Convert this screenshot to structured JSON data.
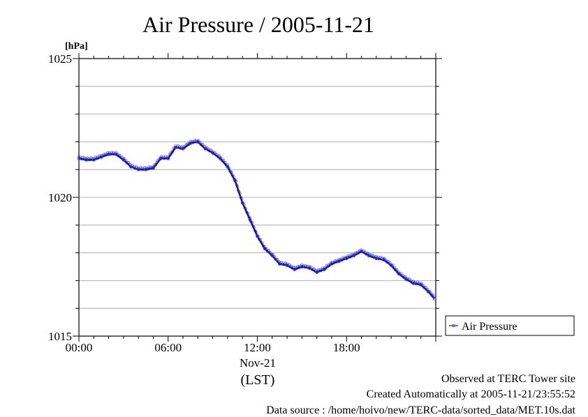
{
  "chart_data": {
    "type": "line",
    "title": "Air Pressure / 2005-11-21",
    "ylabel": "[hPa]",
    "xlabel": "(LST)",
    "x_date_label": "Nov-21",
    "ylim": [
      1015,
      1025
    ],
    "xlim": [
      "00:00",
      "23:59"
    ],
    "y_tick_labels": [
      "1015",
      "1020",
      "1025"
    ],
    "x_tick_labels": [
      "00:00",
      "06:00",
      "12:00",
      "18:00"
    ],
    "grid": true,
    "legend": "right",
    "series_color": "#3a3aff",
    "series": [
      {
        "name": "Air Pressure",
        "x": [
          "00:00",
          "00:30",
          "01:00",
          "01:30",
          "02:00",
          "02:30",
          "03:00",
          "03:30",
          "04:00",
          "04:30",
          "05:00",
          "05:30",
          "06:00",
          "06:30",
          "07:00",
          "07:30",
          "08:00",
          "08:30",
          "09:00",
          "09:30",
          "10:00",
          "10:30",
          "11:00",
          "11:30",
          "12:00",
          "12:30",
          "13:00",
          "13:30",
          "14:00",
          "14:30",
          "15:00",
          "15:30",
          "16:00",
          "16:30",
          "17:00",
          "17:30",
          "18:00",
          "18:30",
          "19:00",
          "19:30",
          "20:00",
          "20:30",
          "21:00",
          "21:30",
          "22:00",
          "22:30",
          "23:00",
          "23:30",
          "23:55"
        ],
        "values": [
          1021.4,
          1021.35,
          1021.35,
          1021.45,
          1021.55,
          1021.55,
          1021.35,
          1021.1,
          1021.0,
          1021.0,
          1021.05,
          1021.4,
          1021.4,
          1021.8,
          1021.75,
          1021.95,
          1022.0,
          1021.75,
          1021.6,
          1021.4,
          1021.1,
          1020.6,
          1019.8,
          1019.2,
          1018.6,
          1018.15,
          1017.9,
          1017.6,
          1017.55,
          1017.4,
          1017.5,
          1017.45,
          1017.3,
          1017.4,
          1017.6,
          1017.7,
          1017.8,
          1017.9,
          1018.05,
          1017.9,
          1017.8,
          1017.75,
          1017.55,
          1017.25,
          1017.05,
          1016.9,
          1016.85,
          1016.6,
          1016.35
        ]
      }
    ]
  },
  "footer": {
    "line1": "Observed at TERC Tower site",
    "line2": "Created Automatically at 2005-11-21/23:55:52",
    "line3": "Data source : /home/hoivo/new/TERC-data/sorted_data/MET.10s.dat"
  }
}
